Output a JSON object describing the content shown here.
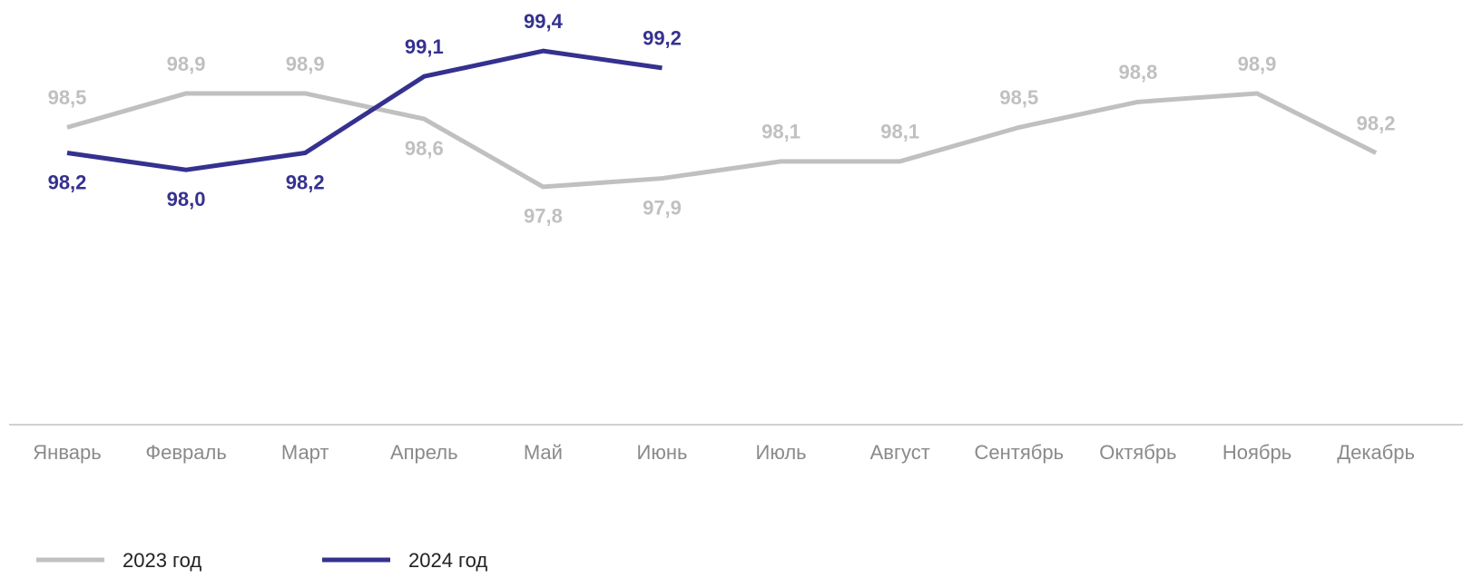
{
  "chart_data": {
    "type": "line",
    "categories": [
      "Январь",
      "Февраль",
      "Март",
      "Апрель",
      "Май",
      "Июнь",
      "Июль",
      "Август",
      "Сентябрь",
      "Октябрь",
      "Ноябрь",
      "Декабрь"
    ],
    "series": [
      {
        "name": "2023 год",
        "color": "#c0c0c0",
        "values": [
          98.5,
          98.9,
          98.9,
          98.6,
          97.8,
          97.9,
          98.1,
          98.1,
          98.5,
          98.8,
          98.9,
          98.2
        ],
        "value_labels": [
          "98,5",
          "98,9",
          "98,9",
          "98,6",
          "97,8",
          "97,9",
          "98,1",
          "98,1",
          "98,5",
          "98,8",
          "98,9",
          "98,2"
        ]
      },
      {
        "name": "2024 год",
        "color": "#35318f",
        "values": [
          98.2,
          98.0,
          98.2,
          99.1,
          99.4,
          99.2,
          null,
          null,
          null,
          null,
          null,
          null
        ],
        "value_labels": [
          "98,2",
          "98,0",
          "98,2",
          "99,1",
          "99,4",
          "99,2",
          null,
          null,
          null,
          null,
          null,
          null
        ]
      }
    ],
    "ylim": [
      95,
      100
    ],
    "legend": "bottom-left"
  }
}
